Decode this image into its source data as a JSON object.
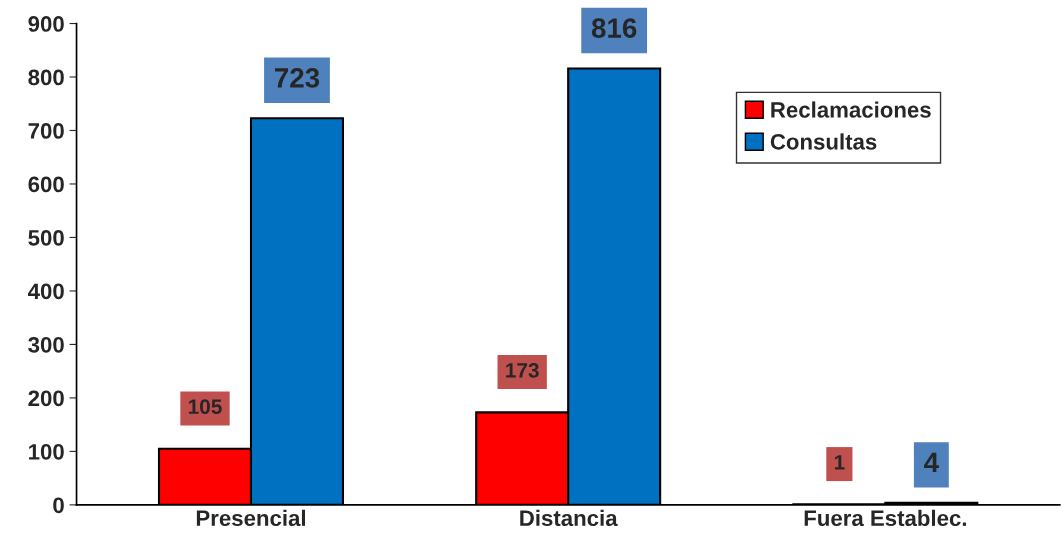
{
  "chart_data": {
    "type": "bar",
    "categories": [
      "Presencial",
      "Distancia",
      "Fuera Establec."
    ],
    "series": [
      {
        "name": "Reclamaciones",
        "color": "#ff0000",
        "values": [
          105,
          173,
          1
        ]
      },
      {
        "name": "Consultas",
        "color": "#0070c0",
        "values": [
          723,
          816,
          4
        ]
      }
    ],
    "ylim": [
      0,
      900
    ],
    "yticks": [
      0,
      100,
      200,
      300,
      400,
      500,
      600,
      700,
      800,
      900
    ],
    "data_labels": true,
    "legend": "top right",
    "grid": false
  }
}
